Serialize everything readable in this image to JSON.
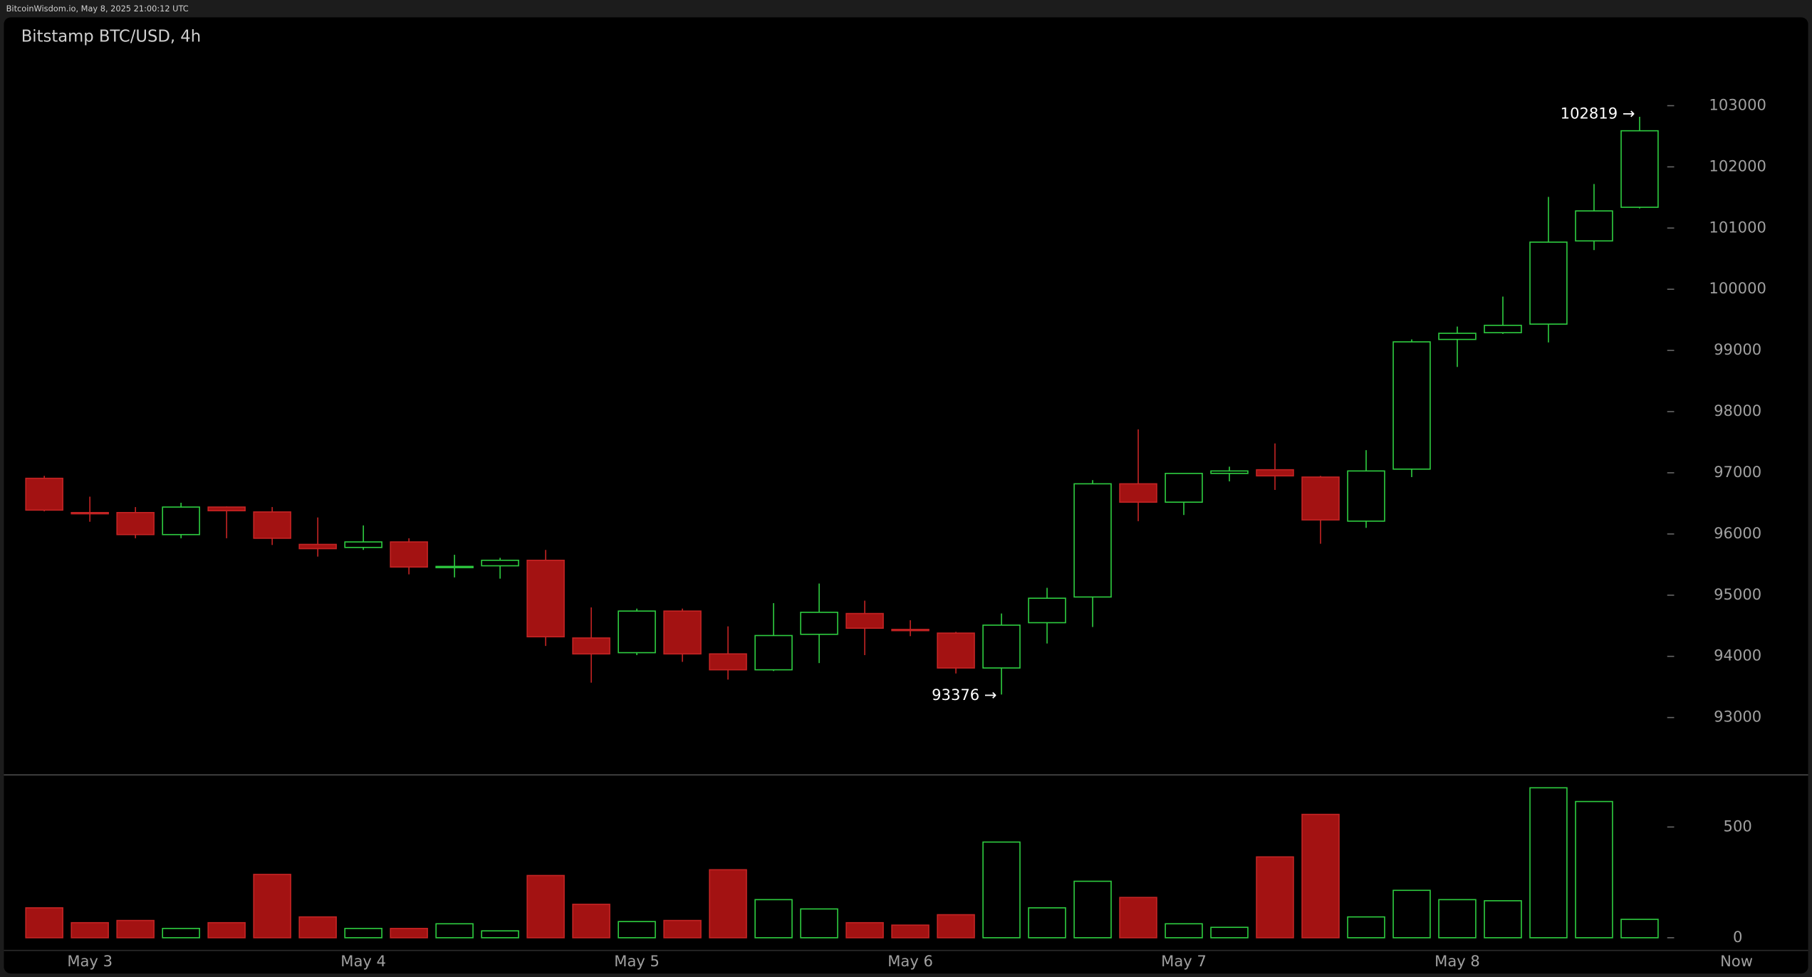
{
  "header": {
    "source": "BitcoinWisdom.io, May 8, 2025 21:00:12 UTC"
  },
  "chart_data": {
    "type": "candlestick",
    "title": "Bitstamp BTC/USD, 4h",
    "categories": [
      null,
      "May 3",
      null,
      null,
      null,
      null,
      null,
      "May 4",
      null,
      null,
      null,
      null,
      null,
      "May 5",
      null,
      null,
      null,
      null,
      null,
      "May 6",
      null,
      null,
      null,
      null,
      null,
      "May 7",
      null,
      null,
      null,
      null,
      null,
      "May 8",
      null,
      null,
      null,
      null
    ],
    "now_label": "Now",
    "open": [
      96910,
      96350,
      96350,
      95990,
      96440,
      96360,
      95830,
      95780,
      95870,
      95450,
      95480,
      95570,
      94300,
      94060,
      94740,
      94040,
      93780,
      94360,
      94700,
      94440,
      94380,
      93810,
      94550,
      94970,
      96820,
      96520,
      96990,
      97050,
      96930,
      96210,
      97060,
      99180,
      99290,
      99430,
      100790,
      101340
    ],
    "high": [
      96950,
      96610,
      96440,
      96510,
      96450,
      96440,
      96270,
      96140,
      95930,
      95660,
      95610,
      95740,
      94800,
      94780,
      94780,
      94490,
      94870,
      95190,
      94910,
      94590,
      94400,
      94700,
      95120,
      96880,
      97710,
      96990,
      97100,
      97480,
      96950,
      97370,
      99180,
      99390,
      99880,
      101510,
      101720,
      102819
    ],
    "low": [
      96370,
      96200,
      95930,
      95930,
      95930,
      95820,
      95630,
      95740,
      95340,
      95290,
      95270,
      94170,
      93570,
      94020,
      93910,
      93620,
      93760,
      93890,
      94020,
      94330,
      93720,
      93376,
      94210,
      94480,
      96210,
      96310,
      96860,
      96720,
      95840,
      96100,
      96930,
      98730,
      99270,
      99130,
      100640,
      101320
    ],
    "close": [
      96390,
      96330,
      95990,
      96440,
      96380,
      95930,
      95760,
      95870,
      95460,
      95470,
      95570,
      94320,
      94040,
      94740,
      94040,
      93780,
      94340,
      94720,
      94460,
      94420,
      93810,
      94510,
      94950,
      96820,
      96520,
      96990,
      97030,
      96950,
      96230,
      97030,
      99140,
      99280,
      99410,
      100770,
      101280,
      102590
    ],
    "volume": [
      135,
      68,
      78,
      42,
      68,
      286,
      94,
      42,
      42,
      63,
      31,
      281,
      151,
      73,
      78,
      307,
      172,
      130,
      68,
      57,
      104,
      432,
      135,
      255,
      182,
      63,
      47,
      365,
      557,
      94,
      214,
      172,
      167,
      677,
      615,
      83
    ],
    "up_color": "#2ecc40",
    "down_color": "#a31212",
    "down_edge_color": "#c42424",
    "ylim": [
      92100,
      104350
    ],
    "yticks": [
      93000,
      94000,
      95000,
      96000,
      97000,
      98000,
      99000,
      100000,
      101000,
      102000,
      103000
    ],
    "volume_ylim": [
      0,
      730
    ],
    "volume_yticks": [
      0,
      500
    ],
    "annotations": [
      {
        "label": "102819 →",
        "value": 102819
      },
      {
        "label": "93376 →",
        "value": 93376
      }
    ]
  }
}
